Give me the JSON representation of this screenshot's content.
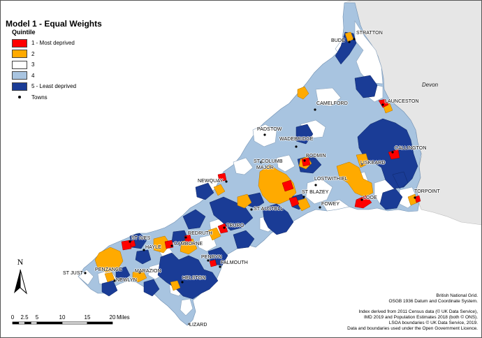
{
  "title": "Model 1 - Equal Weights",
  "legend": {
    "heading": "Quintile",
    "items": [
      {
        "label": "1 - Most deprived",
        "color": "#ff0000"
      },
      {
        "label": "2",
        "color": "#ffaa00"
      },
      {
        "label": "3",
        "color": "#ffffff"
      },
      {
        "label": "4",
        "color": "#a8c4e0"
      },
      {
        "label": "5 - Least deprived",
        "color": "#1a3c96"
      }
    ],
    "towns_label": "Towns"
  },
  "region_label": "Devon",
  "towns": [
    {
      "name": "STRATTON"
    },
    {
      "name": "BUDE"
    },
    {
      "name": "LAUNCESTON"
    },
    {
      "name": "CAMELFORD"
    },
    {
      "name": "PADSTOW"
    },
    {
      "name": "WADEBRIDGE"
    },
    {
      "name": "CALLINGTON"
    },
    {
      "name": "BODMIN"
    },
    {
      "name": "ST COLUMB"
    },
    {
      "name": "MAJOR"
    },
    {
      "name": "LISKEARD"
    },
    {
      "name": "NEWQUAY"
    },
    {
      "name": "LOSTWITHIEL"
    },
    {
      "name": "ST BLAZEY"
    },
    {
      "name": "TORPOINT"
    },
    {
      "name": "LOOE"
    },
    {
      "name": "FOWEY"
    },
    {
      "name": "ST AUSTELL"
    },
    {
      "name": "TRURO"
    },
    {
      "name": "ST IVES"
    },
    {
      "name": "REDRUTH"
    },
    {
      "name": "HAYLE"
    },
    {
      "name": "CAMBORNE"
    },
    {
      "name": "PENRYN"
    },
    {
      "name": "FALMOUTH"
    },
    {
      "name": "ST JUST"
    },
    {
      "name": "PENZANCE"
    },
    {
      "name": "MARAZION"
    },
    {
      "name": "NEWLYN"
    },
    {
      "name": "HELSTON"
    },
    {
      "name": "LIZARD"
    }
  ],
  "north_label": "N",
  "scale_bar": {
    "ticks": [
      "0",
      "2.5",
      "5",
      "10",
      "15",
      "20"
    ],
    "unit": "Miles"
  },
  "credits": [
    "British National Grid.",
    "OSGB 1936 Datum and Coordinate System.",
    "Index derived from 2011 Census data (© UK Data Service),",
    "IMD 2019 and Population Estimates 2018 (both © ONS).",
    "LSOA boundaries © UK Data Service, 2019.",
    "Data and boundaries used under the Open Government Licence."
  ]
}
